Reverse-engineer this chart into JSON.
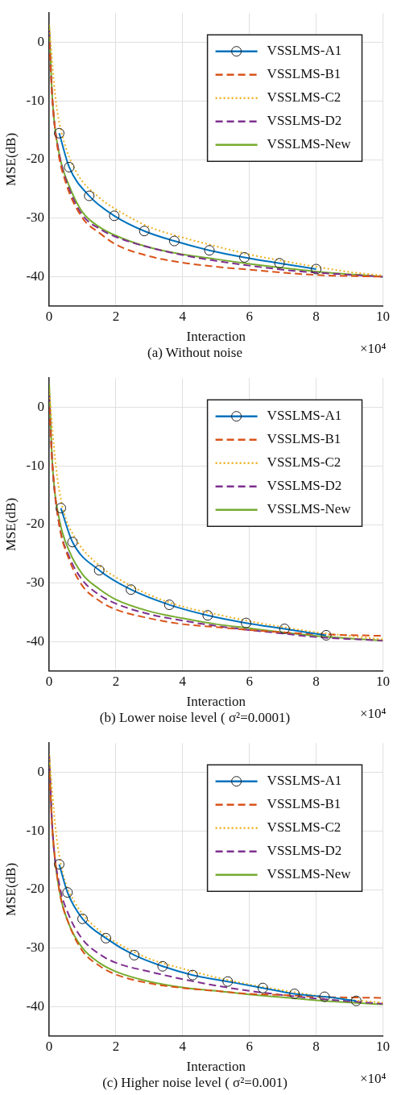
{
  "chart_data": [
    {
      "type": "line",
      "title": "(a) Without noise",
      "xlabel": "Interaction",
      "ylabel": "MSE(dB)",
      "annotations": [
        "×10⁴"
      ],
      "xlim": [
        0,
        10
      ],
      "xticks": [
        0,
        2,
        4,
        6,
        8,
        10
      ],
      "ylim": [
        -45,
        5
      ],
      "yticks": [
        -40,
        -30,
        -20,
        -10,
        0
      ],
      "grid": true,
      "legend": "top right",
      "series": [
        {
          "name": "VSSLMS-A1",
          "color": "#0072bd",
          "marker": "circle",
          "line_style": "solid",
          "x": [
            0.3,
            0.6,
            1.2,
            1.95,
            2.85,
            3.75,
            4.8,
            5.85,
            6.9,
            8.0
          ],
          "values": [
            -15.5,
            -21.3,
            -26.2,
            -29.6,
            -32.2,
            -33.9,
            -35.5,
            -36.7,
            -37.7,
            -38.7
          ]
        },
        {
          "name": "VSSLMS-B1",
          "color": "#d95319",
          "marker": "none",
          "line_style": "dashed",
          "x": [
            0,
            0.1,
            0.25,
            0.5,
            1,
            1.5,
            2,
            3,
            4,
            5,
            6,
            7,
            8,
            10
          ],
          "values": [
            0,
            -10,
            -18,
            -24,
            -30,
            -32.5,
            -34.5,
            -36.5,
            -37.6,
            -38.3,
            -38.8,
            -39.3,
            -39.7,
            -40
          ]
        },
        {
          "name": "VSSLMS-C2",
          "color": "#edb120",
          "marker": "none",
          "line_style": "dotted",
          "x": [
            0,
            0.2,
            0.4,
            0.8,
            1.5,
            2,
            3,
            4,
            5,
            6,
            7,
            8,
            9,
            10
          ],
          "values": [
            3,
            -10,
            -16,
            -22,
            -26.5,
            -28.5,
            -31.5,
            -33.3,
            -34.8,
            -36.2,
            -37.3,
            -38.3,
            -39.2,
            -39.8
          ]
        },
        {
          "name": "VSSLMS-D2",
          "color": "#7e2f8e",
          "marker": "none",
          "line_style": "dashed",
          "x": [
            0,
            0.1,
            0.3,
            0.6,
            1,
            1.5,
            2,
            3,
            4,
            5,
            6,
            7,
            8,
            10
          ],
          "values": [
            2,
            -10,
            -19,
            -25,
            -29.5,
            -31.8,
            -33.2,
            -35,
            -36.3,
            -37.3,
            -38.1,
            -38.8,
            -39.3,
            -40
          ]
        },
        {
          "name": "VSSLMS-New",
          "color": "#77ac30",
          "marker": "none",
          "line_style": "solid",
          "x": [
            0,
            0.1,
            0.3,
            0.6,
            1,
            1.5,
            2,
            3,
            4,
            5,
            6,
            7,
            8,
            10
          ],
          "values": [
            3,
            -10,
            -19,
            -24.5,
            -29,
            -31.5,
            -33,
            -35,
            -36.2,
            -37,
            -37.8,
            -38.5,
            -39.1,
            -40
          ]
        }
      ]
    },
    {
      "type": "line",
      "title": "(b) Lower noise level ( σ²=0.0001)",
      "xlabel": "Interaction",
      "ylabel": "MSE(dB)",
      "annotations": [
        "×10⁴"
      ],
      "xlim": [
        0,
        10
      ],
      "xticks": [
        0,
        2,
        4,
        6,
        8,
        10
      ],
      "ylim": [
        -45,
        5
      ],
      "yticks": [
        -40,
        -30,
        -20,
        -10,
        0
      ],
      "grid": true,
      "legend": "top right",
      "series": [
        {
          "name": "VSSLMS-A1",
          "color": "#0072bd",
          "marker": "circle",
          "line_style": "solid",
          "x": [
            0.35,
            0.7,
            1.5,
            2.45,
            3.6,
            4.75,
            5.9,
            7.05,
            8.3
          ],
          "values": [
            -17.2,
            -23,
            -27.8,
            -31.1,
            -33.7,
            -35.5,
            -36.8,
            -37.8,
            -38.9
          ]
        },
        {
          "name": "VSSLMS-B1",
          "color": "#d95319",
          "marker": "none",
          "line_style": "dashed",
          "x": [
            0,
            0.1,
            0.3,
            0.6,
            1,
            1.5,
            2,
            3,
            4,
            5,
            6,
            7,
            8,
            10
          ],
          "values": [
            0,
            -10,
            -20,
            -26,
            -30.5,
            -33,
            -34.5,
            -36,
            -37,
            -37.5,
            -38,
            -38.4,
            -38.7,
            -39
          ]
        },
        {
          "name": "VSSLMS-C2",
          "color": "#edb120",
          "marker": "none",
          "line_style": "dotted",
          "x": [
            0,
            0.2,
            0.4,
            0.8,
            1.5,
            2,
            3,
            4,
            5,
            6,
            7,
            8,
            9,
            10
          ],
          "values": [
            3,
            -10,
            -17,
            -22.5,
            -27,
            -29,
            -32,
            -34,
            -35.3,
            -36.5,
            -37.5,
            -38.4,
            -39,
            -39.6
          ]
        },
        {
          "name": "VSSLMS-D2",
          "color": "#7e2f8e",
          "marker": "none",
          "line_style": "dashed",
          "x": [
            0,
            0.1,
            0.3,
            0.6,
            1,
            1.5,
            2,
            3,
            4,
            5,
            6,
            7,
            8,
            10
          ],
          "values": [
            2,
            -10,
            -20,
            -25.5,
            -29.5,
            -32,
            -33.5,
            -35.3,
            -36.4,
            -37.3,
            -38,
            -38.6,
            -39.2,
            -39.8
          ]
        },
        {
          "name": "VSSLMS-New",
          "color": "#77ac30",
          "marker": "none",
          "line_style": "solid",
          "x": [
            0,
            0.1,
            0.3,
            0.6,
            1,
            1.5,
            2,
            3,
            4,
            5,
            6,
            7,
            8,
            10
          ],
          "values": [
            4,
            -10,
            -19,
            -24.5,
            -28.5,
            -31,
            -32.8,
            -34.8,
            -36,
            -37,
            -37.7,
            -38.4,
            -39,
            -39.8
          ]
        }
      ]
    },
    {
      "type": "line",
      "title": "(c) Higher noise level ( σ²=0.001)",
      "xlabel": "Interaction",
      "ylabel": "MSE(dB)",
      "annotations": [
        "×10⁴"
      ],
      "xlim": [
        0,
        10
      ],
      "xticks": [
        0,
        2,
        4,
        6,
        8,
        10
      ],
      "ylim": [
        -45,
        5
      ],
      "yticks": [
        -40,
        -30,
        -20,
        -10,
        0
      ],
      "grid": true,
      "legend": "top right",
      "series": [
        {
          "name": "VSSLMS-A1",
          "color": "#0072bd",
          "marker": "circle",
          "line_style": "solid",
          "x": [
            0.3,
            0.55,
            1.0,
            1.7,
            2.55,
            3.4,
            4.3,
            5.35,
            6.4,
            7.35,
            8.25,
            9.2
          ],
          "values": [
            -15.7,
            -20.5,
            -25,
            -28.3,
            -31.2,
            -33.1,
            -34.6,
            -35.7,
            -36.8,
            -37.8,
            -38.3,
            -39
          ]
        },
        {
          "name": "VSSLMS-B1",
          "color": "#d95319",
          "marker": "none",
          "line_style": "dashed",
          "x": [
            0,
            0.1,
            0.3,
            0.6,
            1,
            1.5,
            2,
            3,
            4,
            5,
            6,
            7,
            8,
            10
          ],
          "values": [
            0,
            -10,
            -20,
            -26,
            -30.5,
            -33,
            -34.5,
            -36,
            -36.8,
            -37.3,
            -37.8,
            -38,
            -38.3,
            -38.5
          ]
        },
        {
          "name": "VSSLMS-C2",
          "color": "#edb120",
          "marker": "none",
          "line_style": "dotted",
          "x": [
            0,
            0.2,
            0.4,
            0.8,
            1.5,
            2,
            3,
            4,
            5,
            6,
            7,
            8,
            9,
            10
          ],
          "values": [
            3,
            -10,
            -17,
            -22.5,
            -27,
            -29,
            -31.8,
            -33.5,
            -35,
            -36.2,
            -37.2,
            -38.1,
            -38.8,
            -39.3
          ]
        },
        {
          "name": "VSSLMS-D2",
          "color": "#7e2f8e",
          "marker": "none",
          "line_style": "dashed",
          "x": [
            0,
            0.1,
            0.3,
            0.6,
            1,
            1.5,
            2,
            3,
            4,
            5,
            6,
            7,
            8,
            10
          ],
          "values": [
            3,
            -10,
            -19,
            -24.5,
            -28.5,
            -31,
            -32.5,
            -34,
            -35.3,
            -36.4,
            -37.3,
            -38,
            -38.6,
            -39.5
          ]
        },
        {
          "name": "VSSLMS-New",
          "color": "#77ac30",
          "marker": "none",
          "line_style": "solid",
          "x": [
            0,
            0.1,
            0.3,
            0.6,
            1,
            1.5,
            2,
            3,
            4,
            5,
            6,
            7,
            8,
            10
          ],
          "values": [
            3,
            -10,
            -20,
            -26,
            -30,
            -32.5,
            -34,
            -35.7,
            -36.7,
            -37.3,
            -37.9,
            -38.4,
            -38.9,
            -39.6
          ]
        }
      ]
    }
  ]
}
